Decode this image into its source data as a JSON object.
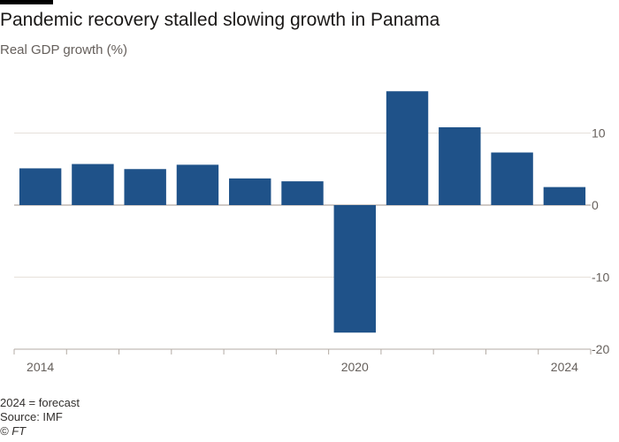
{
  "header": {
    "title": "Pandemic recovery stalled slowing growth in Panama",
    "subtitle": "Real GDP growth (%)"
  },
  "chart_data": {
    "type": "bar",
    "categories": [
      "2014",
      "2015",
      "2016",
      "2017",
      "2018",
      "2019",
      "2020",
      "2021",
      "2022",
      "2023",
      "2024"
    ],
    "values": [
      5.1,
      5.7,
      5.0,
      5.6,
      3.7,
      3.3,
      -17.7,
      15.8,
      10.8,
      7.3,
      2.5
    ],
    "x_tick_labels": [
      "2014",
      "2020",
      "2024"
    ],
    "y_ticks": [
      10,
      0,
      -10,
      -20
    ],
    "ylim": [
      -20,
      17
    ],
    "grid": true,
    "bar_color": "#1f5289"
  },
  "footer": {
    "note": "2024 = forecast",
    "source": "Source: IMF",
    "copyright": "© FT"
  }
}
